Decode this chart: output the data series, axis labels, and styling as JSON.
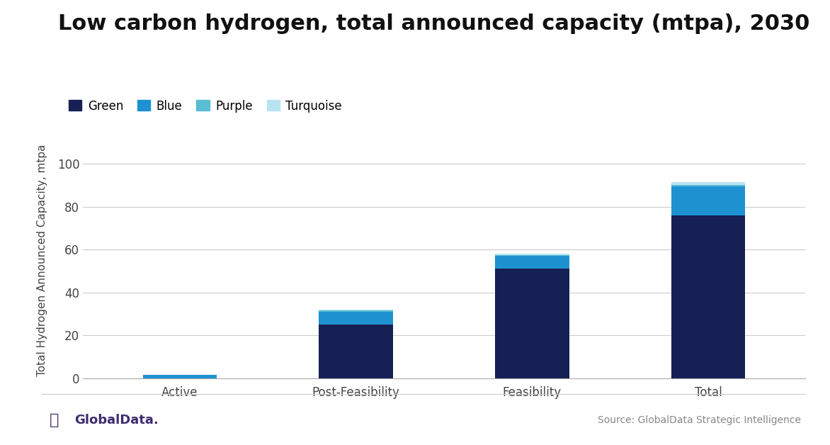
{
  "title": "Low carbon hydrogen, total announced capacity (mtpa), 2030",
  "ylabel": "Total Hydrogen Announced Capacity, mtpa",
  "categories": [
    "Active",
    "Post-Feasibility",
    "Feasibility",
    "Total"
  ],
  "series": {
    "Green": [
      0.0,
      25.0,
      51.0,
      76.0
    ],
    "Blue": [
      1.5,
      6.0,
      6.0,
      13.5
    ],
    "Purple": [
      0.0,
      0.5,
      0.5,
      0.5
    ],
    "Turquoise": [
      0.0,
      0.5,
      0.5,
      1.5
    ]
  },
  "colors": {
    "Green": "#162055",
    "Blue": "#1e92d0",
    "Purple": "#5bbdd4",
    "Turquoise": "#b8e4f2"
  },
  "ylim": [
    0,
    110
  ],
  "yticks": [
    0,
    20,
    40,
    60,
    80,
    100
  ],
  "bar_width": 0.42,
  "background_color": "#ffffff",
  "source_text": "Source: GlobalData Strategic Intelligence",
  "globaldata_text": "GlobalData.",
  "legend_order": [
    "Green",
    "Blue",
    "Purple",
    "Turquoise"
  ],
  "title_fontsize": 22,
  "legend_fontsize": 12,
  "tick_fontsize": 12,
  "ylabel_fontsize": 11
}
